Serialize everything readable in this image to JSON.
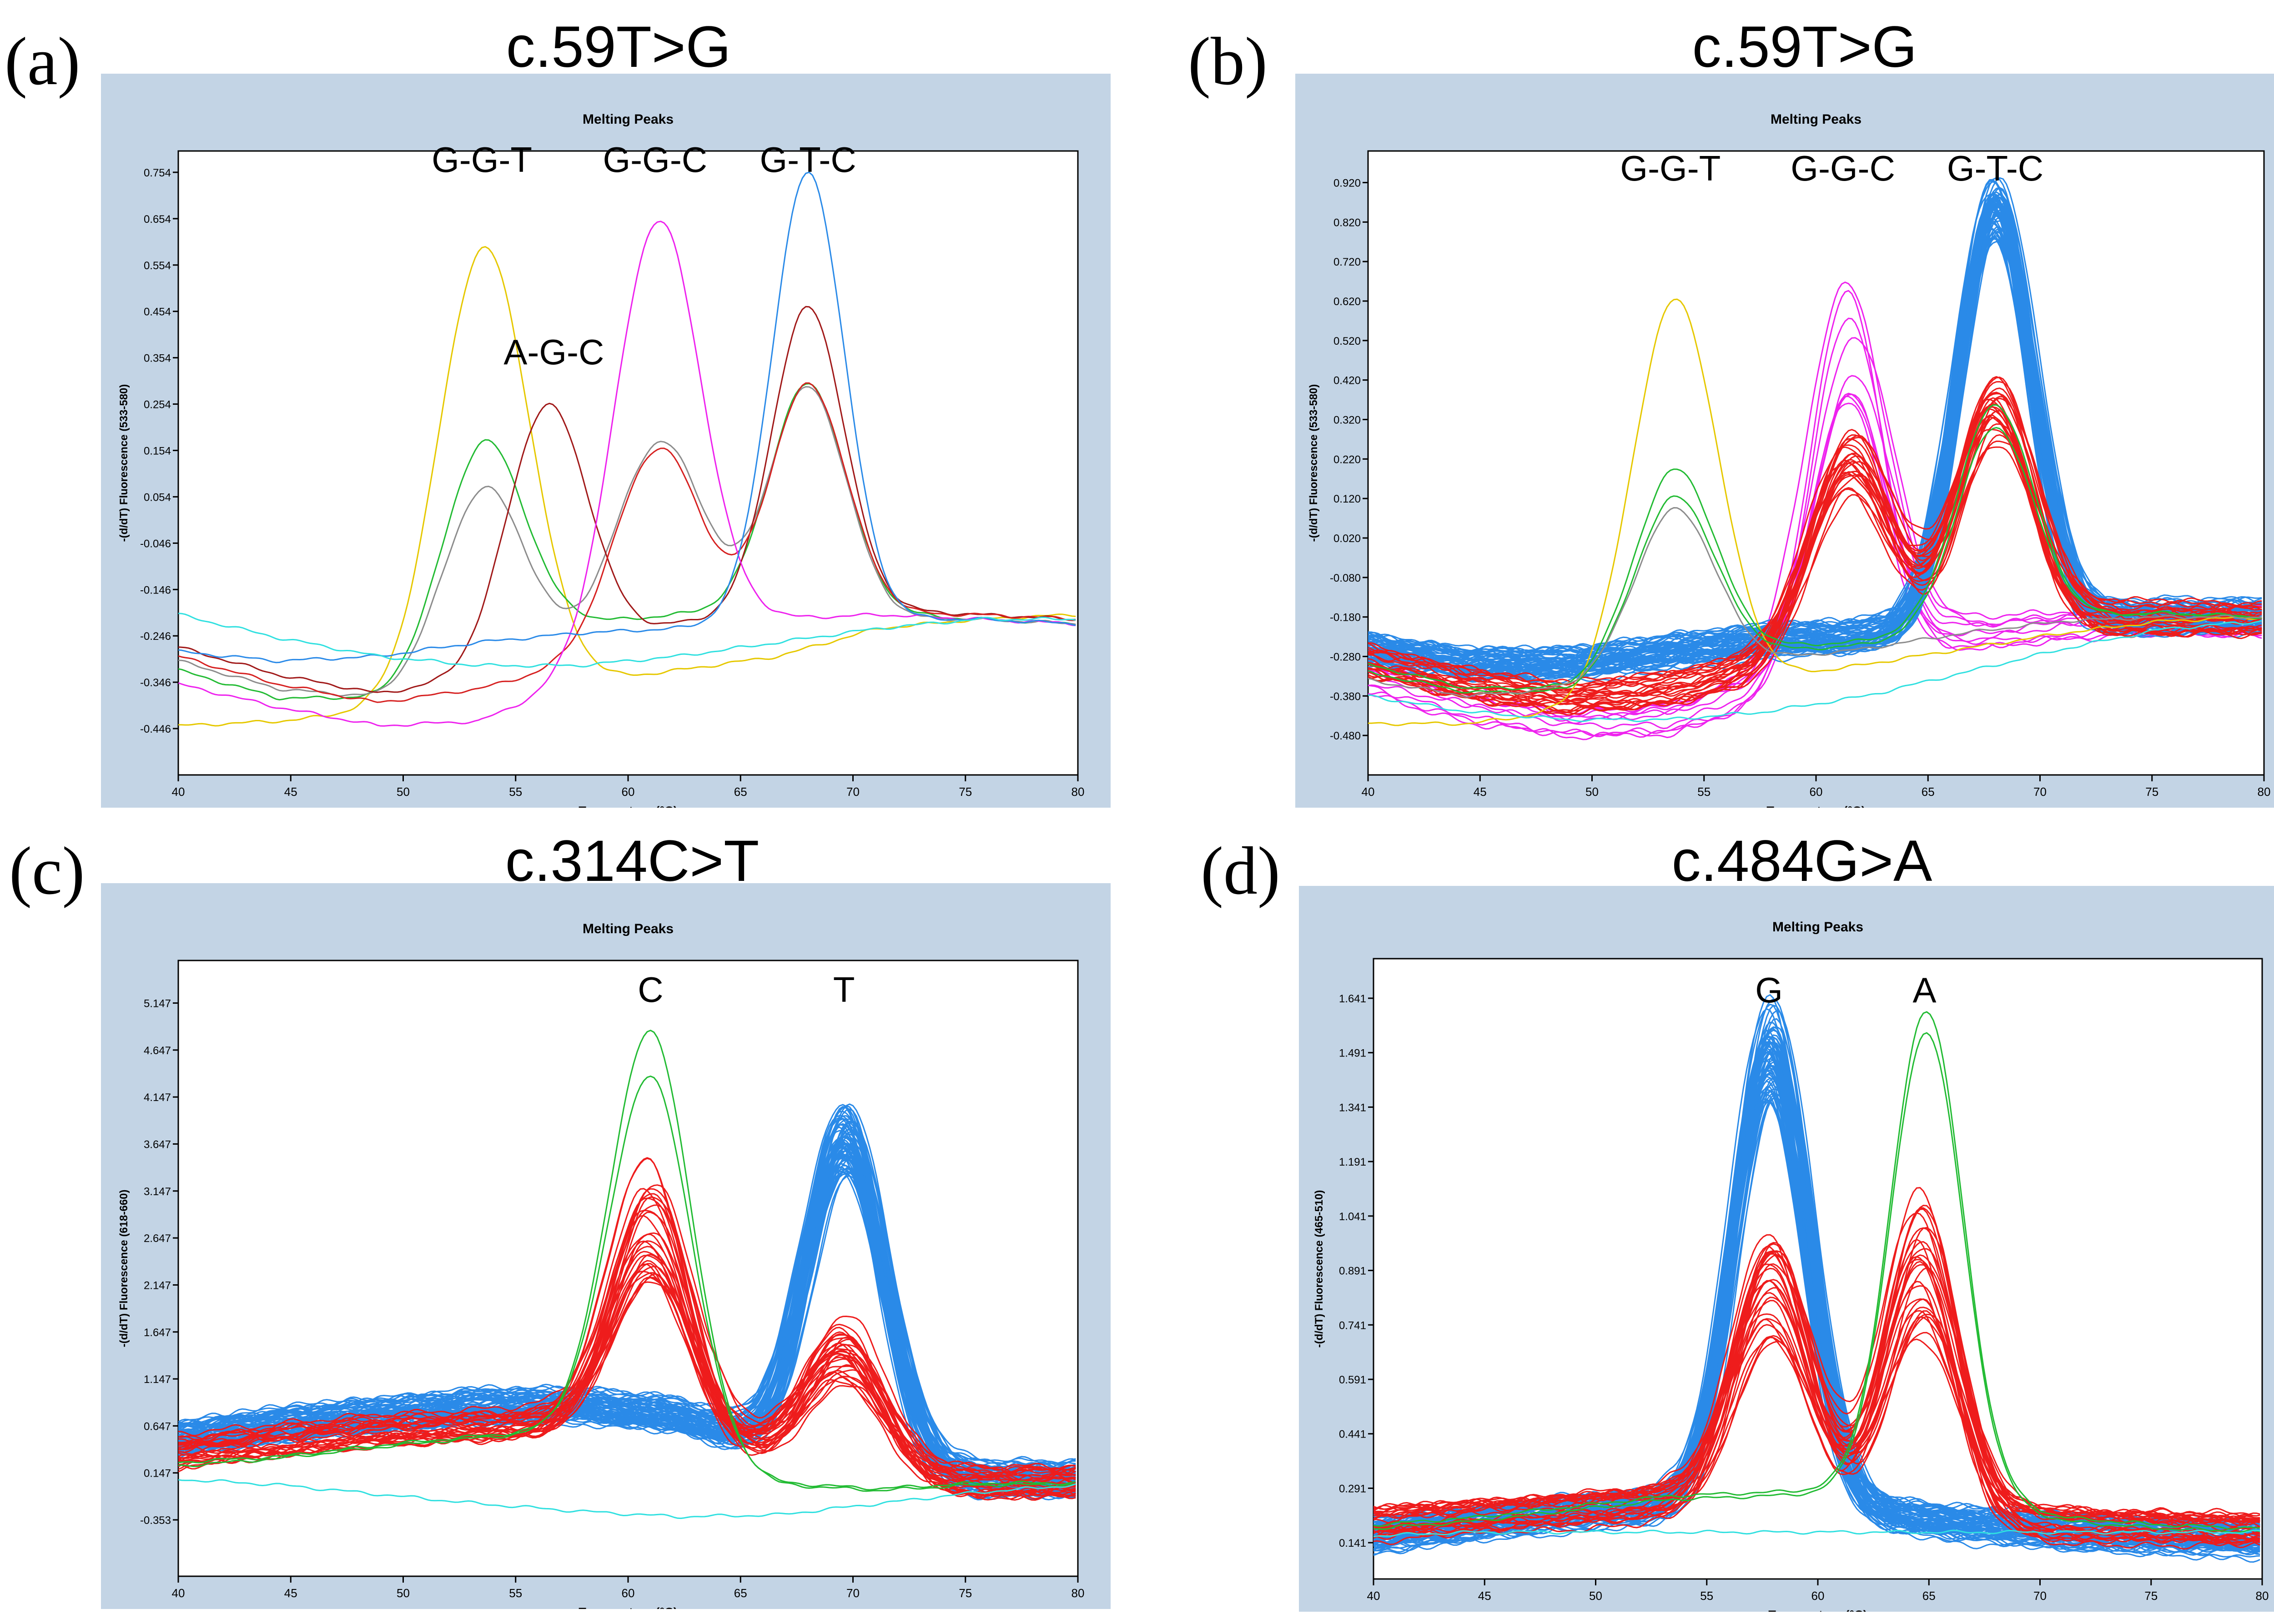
{
  "panels": [
    {
      "letter": "(a)",
      "title": "c.59T>G",
      "chart_data": {
        "type": "line",
        "title": "Melting Peaks",
        "xlabel": "Temperature (°C)",
        "ylabel": "-(d/dT) Fluorescence (533-580)",
        "xlim": [
          40,
          80
        ],
        "ylim": [
          -0.546,
          0.8
        ],
        "xticks": [
          40,
          45,
          50,
          55,
          60,
          65,
          70,
          75,
          80
        ],
        "yticks": [
          "-0.446",
          "-0.346",
          "-0.246",
          "-0.146",
          "-0.046",
          "0.054",
          "0.154",
          "0.254",
          "0.354",
          "0.454",
          "0.554",
          "0.654",
          "0.754"
        ],
        "annotations": [
          {
            "text": "G-G-T",
            "x": 53.5,
            "y": 0.755
          },
          {
            "text": "G-G-C",
            "x": 61.2,
            "y": 0.755
          },
          {
            "text": "G-T-C",
            "x": 68.0,
            "y": 0.755
          },
          {
            "text": "A-G-C",
            "x": 56.7,
            "y": 0.34
          }
        ],
        "series": [
          {
            "color": "#e6c800",
            "baseline": [
              -0.44,
              -0.43,
              -0.41,
              -0.38,
              -0.35,
              -0.32,
              -0.29,
              -0.23,
              -0.21,
              -0.2
            ],
            "peaks": [
              {
                "center": 53.6,
                "amp": 0.97,
                "width": 2.0
              }
            ]
          },
          {
            "color": "#22bb33",
            "baseline": [
              -0.32,
              -0.38,
              -0.38,
              -0.28,
              -0.22,
              -0.2,
              -0.19,
              -0.2,
              -0.21,
              -0.22
            ],
            "peaks": [
              {
                "center": 53.6,
                "amp": 0.45,
                "width": 1.8
              },
              {
                "center": 68.0,
                "amp": 0.49,
                "width": 1.7
              }
            ]
          },
          {
            "color": "#8c8c8c",
            "baseline": [
              -0.3,
              -0.36,
              -0.38,
              -0.32,
              -0.27,
              -0.23,
              -0.21,
              -0.21,
              -0.21,
              -0.22
            ],
            "peaks": [
              {
                "center": 53.6,
                "amp": 0.39,
                "width": 1.8
              },
              {
                "center": 61.4,
                "amp": 0.41,
                "width": 1.9
              },
              {
                "center": 68.0,
                "amp": 0.5,
                "width": 1.7
              }
            ]
          },
          {
            "color": "#a01818",
            "baseline": [
              -0.27,
              -0.33,
              -0.37,
              -0.34,
              -0.28,
              -0.22,
              -0.2,
              -0.19,
              -0.2,
              -0.21
            ],
            "peaks": [
              {
                "center": 56.4,
                "amp": 0.55,
                "width": 1.8
              },
              {
                "center": 68.0,
                "amp": 0.66,
                "width": 1.6
              }
            ]
          },
          {
            "color": "#d62020",
            "baseline": [
              -0.29,
              -0.35,
              -0.39,
              -0.36,
              -0.31,
              -0.25,
              -0.22,
              -0.2,
              -0.2,
              -0.21
            ],
            "peaks": [
              {
                "center": 61.3,
                "amp": 0.42,
                "width": 1.9
              },
              {
                "center": 68.0,
                "amp": 0.51,
                "width": 1.7
              }
            ]
          },
          {
            "color": "#ee22ee",
            "baseline": [
              -0.35,
              -0.4,
              -0.44,
              -0.43,
              -0.35,
              -0.25,
              -0.21,
              -0.2,
              -0.21,
              -0.22
            ],
            "peaks": [
              {
                "center": 61.3,
                "amp": 0.92,
                "width": 1.9
              }
            ]
          },
          {
            "color": "#2a8ae8",
            "baseline": [
              -0.28,
              -0.3,
              -0.29,
              -0.26,
              -0.24,
              -0.23,
              -0.22,
              -0.21,
              -0.21,
              -0.22
            ],
            "peaks": [
              {
                "center": 68.0,
                "amp": 0.97,
                "width": 1.6
              }
            ]
          },
          {
            "color": "#30e0e0",
            "baseline": [
              -0.2,
              -0.25,
              -0.29,
              -0.31,
              -0.31,
              -0.29,
              -0.26,
              -0.23,
              -0.21,
              -0.21
            ],
            "peaks": []
          }
        ]
      }
    },
    {
      "letter": "(b)",
      "title": "c.59T>G",
      "chart_data": {
        "type": "line",
        "title": "Melting Peaks",
        "xlabel": "Temperature (°C)",
        "ylabel": "-(d/dT) Fluorescence (533-580)",
        "xlim": [
          40,
          80
        ],
        "ylim": [
          -0.58,
          1.0
        ],
        "xticks": [
          40,
          45,
          50,
          55,
          60,
          65,
          70,
          75,
          80
        ],
        "yticks": [
          "-0.480",
          "-0.380",
          "-0.280",
          "-0.180",
          "-0.080",
          "0.020",
          "0.120",
          "0.220",
          "0.320",
          "0.420",
          "0.520",
          "0.620",
          "0.720",
          "0.820",
          "0.920"
        ],
        "annotations": [
          {
            "text": "G-G-T",
            "x": 53.5,
            "y": 0.925
          },
          {
            "text": "G-G-C",
            "x": 61.2,
            "y": 0.925
          },
          {
            "text": "G-T-C",
            "x": 68.0,
            "y": 0.925
          }
        ],
        "series": [
          {
            "color": "#e6c800",
            "baseline": [
              -0.45,
              -0.45,
              -0.42,
              -0.38,
              -0.34,
              -0.3,
              -0.26,
              -0.22,
              -0.19,
              -0.18
            ],
            "peaks": [
              {
                "center": 53.7,
                "amp": 1.0,
                "width": 1.9
              }
            ]
          },
          {
            "color": "#22bb33",
            "baseline": [
              -0.3,
              -0.36,
              -0.36,
              -0.3,
              -0.26,
              -0.24,
              -0.2,
              -0.18,
              -0.17,
              -0.18
            ],
            "peaks": [
              {
                "center": 53.7,
                "amp": 0.49,
                "width": 1.8
              },
              {
                "center": 68.0,
                "amp": 0.55,
                "width": 1.7
              }
            ]
          },
          {
            "color": "#22bb33",
            "baseline": [
              -0.32,
              -0.37,
              -0.37,
              -0.31,
              -0.27,
              -0.25,
              -0.21,
              -0.18,
              -0.17,
              -0.18
            ],
            "peaks": [
              {
                "center": 53.7,
                "amp": 0.43,
                "width": 1.8
              },
              {
                "center": 68.0,
                "amp": 0.5,
                "width": 1.7
              }
            ]
          },
          {
            "color": "#8c8c8c",
            "baseline": [
              -0.34,
              -0.38,
              -0.36,
              -0.32,
              -0.29,
              -0.26,
              -0.22,
              -0.19,
              -0.18,
              -0.18
            ],
            "peaks": [
              {
                "center": 53.7,
                "amp": 0.41,
                "width": 1.8
              }
            ]
          },
          {
            "color": "#30e0e0",
            "baseline": [
              -0.38,
              -0.42,
              -0.44,
              -0.44,
              -0.42,
              -0.38,
              -0.32,
              -0.26,
              -0.21,
              -0.19
            ],
            "peaks": []
          }
        ],
        "groups": [
          {
            "color": "#ee22ee",
            "count": 9,
            "baseline": [
              -0.33,
              -0.4,
              -0.45,
              -0.44,
              -0.36,
              -0.26,
              -0.22,
              -0.2,
              -0.19,
              -0.19
            ],
            "peaks": [
              {
                "center": 61.5,
                "ampMin": 0.62,
                "ampMax": 1.02,
                "width": 1.7
              }
            ]
          },
          {
            "color": "#2a8ae8",
            "count": 60,
            "baseline": [
              -0.26,
              -0.3,
              -0.3,
              -0.27,
              -0.24,
              -0.23,
              -0.21,
              -0.19,
              -0.18,
              -0.18
            ],
            "peaks": [
              {
                "center": 68.0,
                "ampMin": 0.98,
                "ampMax": 1.12,
                "width": 1.65
              }
            ]
          },
          {
            "color": "#ee1c1c",
            "count": 24,
            "baseline": [
              -0.29,
              -0.35,
              -0.38,
              -0.36,
              -0.3,
              -0.25,
              -0.22,
              -0.19,
              -0.18,
              -0.18
            ],
            "peaks": [
              {
                "center": 61.5,
                "ampMin": 0.4,
                "ampMax": 0.56,
                "width": 1.8
              },
              {
                "center": 68.0,
                "ampMin": 0.44,
                "ampMax": 0.62,
                "width": 1.7
              }
            ]
          }
        ]
      }
    },
    {
      "letter": "(c)",
      "title": "c.314C>T",
      "chart_data": {
        "type": "line",
        "title": "Melting Peaks",
        "xlabel": "Temperature (°C)",
        "ylabel": "-(d/dT) Fluorescence (618-660)",
        "xlim": [
          40,
          80
        ],
        "ylim": [
          -0.953,
          5.6
        ],
        "xticks": [
          40,
          45,
          50,
          55,
          60,
          65,
          70,
          75,
          80
        ],
        "yticks": [
          "-0.353",
          "0.147",
          "0.647",
          "1.147",
          "1.647",
          "2.147",
          "2.647",
          "3.147",
          "3.647",
          "4.147",
          "4.647",
          "5.147"
        ],
        "annotations": [
          {
            "text": "C",
            "x": 61.0,
            "y": 5.16
          },
          {
            "text": "T",
            "x": 69.6,
            "y": 5.16
          }
        ],
        "series": [
          {
            "color": "#22bb33",
            "baseline": [
              0.22,
              0.3,
              0.42,
              0.52,
              0.58,
              0.32,
              0.02,
              -0.04,
              0.02,
              0.02
            ],
            "peaks": [
              {
                "center": 61.0,
                "amp": 4.45,
                "width": 1.8
              }
            ]
          },
          {
            "color": "#22bb33",
            "baseline": [
              0.26,
              0.32,
              0.44,
              0.54,
              0.6,
              0.34,
              0.04,
              -0.02,
              0.04,
              0.04
            ],
            "peaks": [
              {
                "center": 61.0,
                "amp": 3.95,
                "width": 1.8
              }
            ]
          },
          {
            "color": "#30e0e0",
            "baseline": [
              0.08,
              0.02,
              -0.08,
              -0.18,
              -0.26,
              -0.32,
              -0.3,
              -0.18,
              -0.06,
              0.02
            ],
            "peaks": []
          }
        ],
        "groups": [
          {
            "color": "#2a8ae8",
            "count": 70,
            "baseline": [
              0.52,
              0.66,
              0.76,
              0.86,
              0.86,
              0.76,
              0.4,
              0.14,
              0.09,
              0.08
            ],
            "peaks": [
              {
                "center": 69.7,
                "ampMin": 3.15,
                "ampMax": 3.8,
                "width": 1.75
              }
            ]
          },
          {
            "color": "#ee1c1c",
            "count": 30,
            "baseline": [
              0.38,
              0.48,
              0.58,
              0.66,
              0.68,
              0.58,
              0.34,
              0.1,
              0.05,
              0.05
            ],
            "peaks": [
              {
                "center": 61.0,
                "ampMin": 1.5,
                "ampMax": 2.8,
                "width": 1.75
              },
              {
                "center": 69.7,
                "ampMin": 0.9,
                "ampMax": 1.6,
                "width": 1.75
              }
            ]
          }
        ]
      }
    },
    {
      "letter": "(d)",
      "title": "c.484G>A",
      "chart_data": {
        "type": "line",
        "title": "Melting Peaks",
        "xlabel": "Temperature (°C)",
        "ylabel": "-(d/dT) Fluorescence (465-510)",
        "xlim": [
          40,
          80
        ],
        "ylim": [
          0.041,
          1.75
        ],
        "xticks": [
          40,
          45,
          50,
          55,
          60,
          65,
          70,
          75,
          80
        ],
        "yticks": [
          "0.141",
          "0.291",
          "0.441",
          "0.591",
          "0.741",
          "0.891",
          "1.041",
          "1.191",
          "1.341",
          "1.491",
          "1.641"
        ],
        "annotations": [
          {
            "text": "G",
            "x": 57.8,
            "y": 1.63
          },
          {
            "text": "A",
            "x": 64.8,
            "y": 1.63
          }
        ],
        "series": [
          {
            "color": "#22bb33",
            "baseline": [
              0.19,
              0.21,
              0.24,
              0.27,
              0.28,
              0.29,
              0.27,
              0.21,
              0.19,
              0.18
            ],
            "peaks": [
              {
                "center": 64.9,
                "amp": 1.33,
                "width": 1.6
              }
            ]
          },
          {
            "color": "#22bb33",
            "baseline": [
              0.18,
              0.2,
              0.23,
              0.26,
              0.27,
              0.28,
              0.26,
              0.2,
              0.18,
              0.17
            ],
            "peaks": [
              {
                "center": 64.9,
                "amp": 1.28,
                "width": 1.6
              }
            ]
          },
          {
            "color": "#30e0e0",
            "baseline": [
              0.16,
              0.17,
              0.17,
              0.17,
              0.17,
              0.17,
              0.17,
              0.17,
              0.17,
              0.17
            ],
            "peaks": []
          }
        ],
        "groups": [
          {
            "color": "#2a8ae8",
            "count": 70,
            "baseline": [
              0.16,
              0.19,
              0.22,
              0.24,
              0.24,
              0.22,
              0.19,
              0.17,
              0.16,
              0.15
            ],
            "peaks": [
              {
                "center": 57.9,
                "ampMin": 1.12,
                "ampMax": 1.37,
                "width": 1.65
              }
            ]
          },
          {
            "color": "#ee1c1c",
            "count": 28,
            "baseline": [
              0.19,
              0.21,
              0.23,
              0.25,
              0.25,
              0.24,
              0.21,
              0.19,
              0.18,
              0.17
            ],
            "peaks": [
              {
                "center": 57.9,
                "ampMin": 0.45,
                "ampMax": 0.75,
                "width": 1.7
              },
              {
                "center": 64.7,
                "ampMin": 0.45,
                "ampMax": 0.86,
                "width": 1.6
              }
            ]
          }
        ]
      }
    }
  ]
}
